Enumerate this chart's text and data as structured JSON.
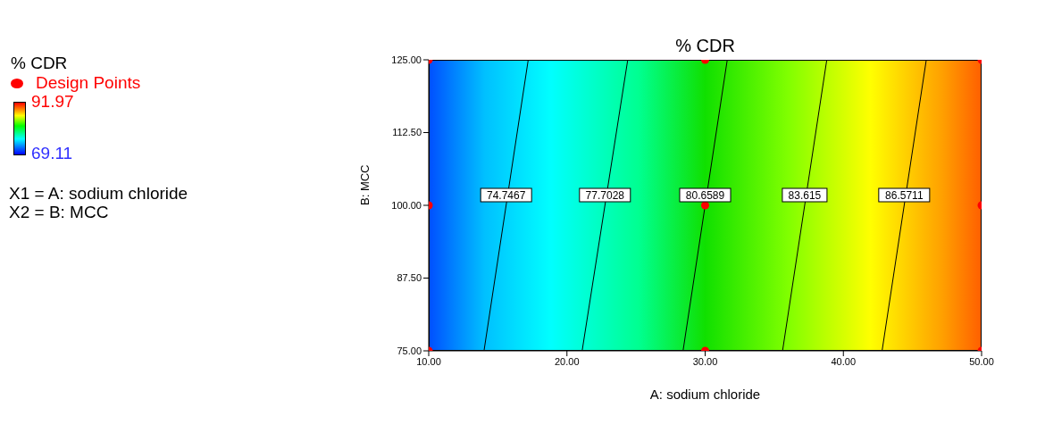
{
  "chart_data": {
    "type": "line",
    "title": "% CDR",
    "xlabel": "A: sodium chloride",
    "ylabel": "B: MCC",
    "clabel": "% CDR",
    "clim": [
      69.11,
      91.97
    ],
    "cticks": [
      69.11,
      91.97
    ],
    "xlim": [
      10,
      50
    ],
    "xticks": [
      {
        "value": 10,
        "label": "10.00"
      },
      {
        "value": 20,
        "label": "20.00"
      },
      {
        "value": 30,
        "label": "30.00"
      },
      {
        "value": 40,
        "label": "40.00"
      },
      {
        "value": 50,
        "label": "50.00"
      }
    ],
    "ylim": [
      75,
      125
    ],
    "yticks": [
      {
        "value": 75,
        "label": "75.00"
      },
      {
        "value": 87.5,
        "label": "87.50"
      },
      {
        "value": 100,
        "label": "100.00"
      },
      {
        "value": 112.5,
        "label": "112.50"
      },
      {
        "value": 125,
        "label": "125.00"
      }
    ],
    "grid": false,
    "legend": "left",
    "line_style": "solid",
    "annotations": [
      "X1 = A: sodium chloride",
      "X2 = B: MCC"
    ],
    "series": [
      {
        "name": "74.7467",
        "type": "line",
        "color": "#000000",
        "marker": "none",
        "x": [
          14.0,
          17.2
        ],
        "values": [
          75,
          125
        ]
      },
      {
        "name": "77.7028",
        "type": "line",
        "color": "#000000",
        "marker": "none",
        "x": [
          21.1,
          24.4
        ],
        "values": [
          75,
          125
        ]
      },
      {
        "name": "80.6589",
        "type": "line",
        "color": "#000000",
        "marker": "none",
        "x": [
          28.4,
          31.6
        ],
        "values": [
          75,
          125
        ]
      },
      {
        "name": "83.615",
        "type": "line",
        "color": "#000000",
        "marker": "none",
        "x": [
          35.6,
          38.8
        ],
        "values": [
          75,
          125
        ]
      },
      {
        "name": "86.5711",
        "type": "line",
        "color": "#000000",
        "marker": "none",
        "x": [
          42.8,
          46.0
        ],
        "values": [
          75,
          125
        ]
      },
      {
        "name": "Design Points",
        "type": "scatter",
        "color": "#ff0000",
        "marker": "circle",
        "x": [
          10,
          30,
          50,
          10,
          30,
          50,
          10,
          30,
          50
        ],
        "values": [
          75,
          75,
          75,
          100,
          100,
          100,
          125,
          125,
          125
        ]
      }
    ]
  }
}
